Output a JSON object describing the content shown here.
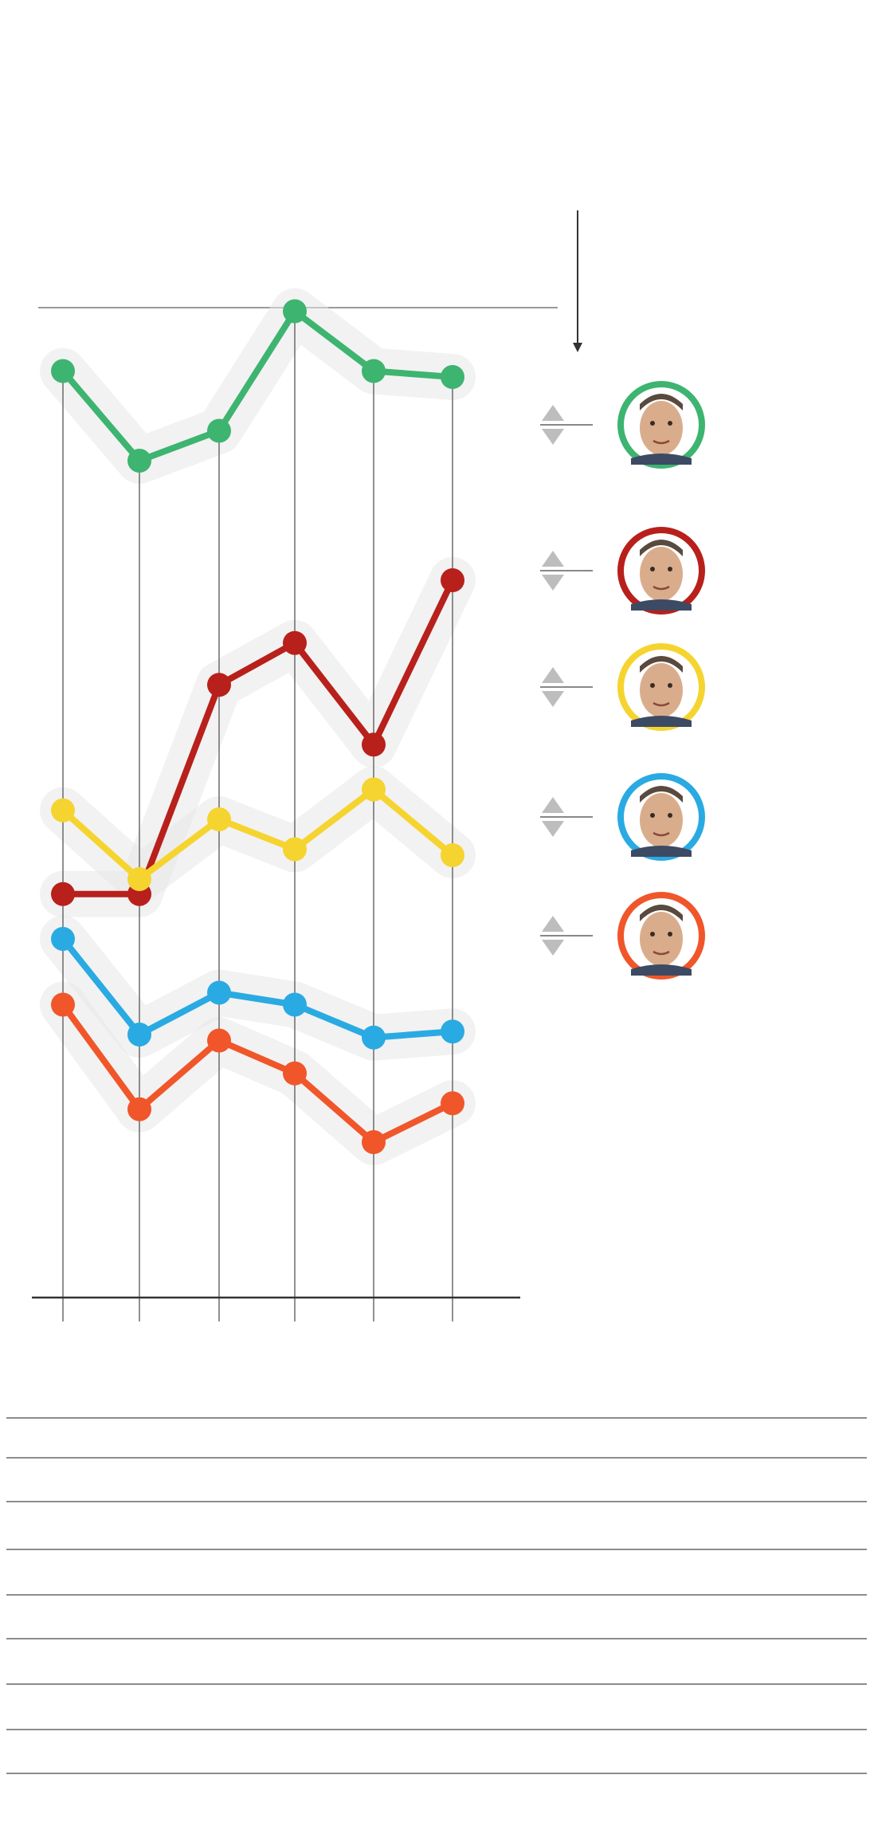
{
  "chart_data": {
    "type": "line",
    "title": "",
    "xlabel": "",
    "ylabel": "",
    "x": [
      "",
      "",
      "",
      "",
      "",
      ""
    ],
    "ylim": [
      0,
      40
    ],
    "grid": "vertical",
    "series": [
      {
        "key": "bolsonaro",
        "color": "#3db470",
        "values": [
          31,
          28,
          29,
          33,
          31,
          30.8
        ],
        "trend": "stable",
        "photo": "bolsonaro-photo"
      },
      {
        "key": "haddad",
        "color": "#b8201b",
        "values": [
          13.5,
          13.5,
          20.5,
          21.9,
          18.5,
          24
        ],
        "trend": "up",
        "photo": "haddad-photo"
      },
      {
        "key": "marina",
        "color": "#f5d430",
        "values": [
          16.3,
          14,
          16,
          15,
          17,
          14.8
        ],
        "trend": "stable",
        "photo": "marina-photo"
      },
      {
        "key": "alckmin",
        "color": "#2aaae2",
        "values": [
          12,
          8.8,
          10.2,
          9.8,
          8.7,
          8.9
        ],
        "trend": "stable",
        "photo": "alckmin-photo"
      },
      {
        "key": "ciro",
        "color": "#f0562a",
        "values": [
          9.8,
          6.3,
          8.6,
          7.5,
          5.2,
          6.5
        ],
        "trend": "stable",
        "photo": "ciro-photo"
      }
    ]
  },
  "table": {
    "rows": [
      {
        "label": ""
      },
      {
        "label": ""
      },
      {
        "label": ""
      },
      {
        "label": ""
      },
      {
        "label": ""
      },
      {
        "label": ""
      },
      {
        "label": ""
      },
      {
        "label": ""
      },
      {
        "label": ""
      }
    ]
  },
  "colors": {
    "axis": "#333333",
    "gridline": "#555555",
    "halo": "#e8e8e8",
    "arrow": "#bdbdbd",
    "rule": "#666666"
  }
}
